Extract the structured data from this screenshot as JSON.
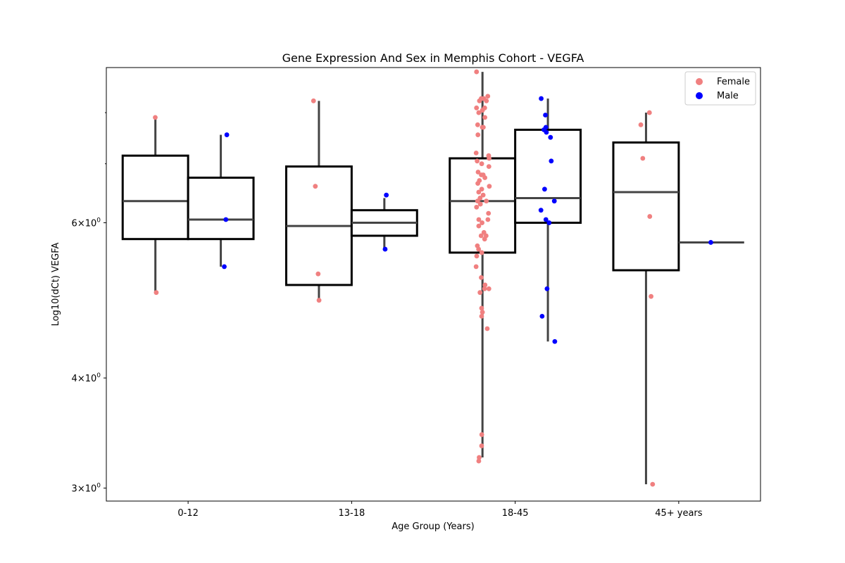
{
  "chart_data": {
    "type": "box",
    "title": "Gene Expression And Sex in Memphis Cohort - VEGFA",
    "xlabel": "Age Group (Years)",
    "ylabel": "Log10(dCt) VEGFA",
    "y_scale": "log",
    "ylim": [
      2.9,
      9.0
    ],
    "y_major_ticks": [
      {
        "value": 3,
        "label_base": "3×10",
        "label_exp": "0"
      },
      {
        "value": 4,
        "label_base": "4×10",
        "label_exp": "0"
      },
      {
        "value": 6,
        "label_base": "6×10",
        "label_exp": "0"
      }
    ],
    "y_minor_ticks": [
      7,
      8
    ],
    "categories": [
      "0-12",
      "13-18",
      "18-45",
      "45+ years"
    ],
    "legend": {
      "position": "upper right",
      "entries": [
        {
          "label": "Female",
          "color": "#f08080"
        },
        {
          "label": "Male",
          "color": "#0000ff"
        }
      ]
    },
    "series": [
      {
        "name": "Female",
        "color": "#f08080",
        "boxes": [
          {
            "category": "0-12",
            "whisker_low": 5.0,
            "q1": 5.75,
            "median": 6.35,
            "q3": 7.15,
            "whisker_high": 7.9
          },
          {
            "category": "13-18",
            "whisker_low": 4.9,
            "q1": 5.1,
            "median": 5.95,
            "q3": 6.95,
            "whisker_high": 8.25
          },
          {
            "category": "18-45",
            "whisker_low": 3.25,
            "q1": 5.55,
            "median": 6.35,
            "q3": 7.1,
            "whisker_high": 8.9
          },
          {
            "category": "45+ years",
            "whisker_low": 3.03,
            "q1": 5.3,
            "median": 6.5,
            "q3": 7.4,
            "whisker_high": 8.0
          }
        ],
        "points": [
          {
            "category": "0-12",
            "values": [
              7.9,
              5.0
            ]
          },
          {
            "category": "13-18",
            "values": [
              8.25,
              6.6,
              5.25,
              4.9
            ]
          },
          {
            "category": "18-45",
            "values": [
              8.9,
              8.35,
              8.3,
              8.3,
              8.25,
              8.25,
              8.1,
              8.1,
              8.05,
              8.0,
              7.9,
              7.75,
              7.7,
              7.7,
              7.55,
              7.2,
              7.15,
              7.1,
              7.05,
              7.0,
              6.95,
              6.85,
              6.8,
              6.8,
              6.75,
              6.7,
              6.65,
              6.6,
              6.55,
              6.5,
              6.45,
              6.4,
              6.35,
              6.35,
              6.3,
              6.3,
              6.25,
              6.15,
              6.05,
              6.05,
              6.0,
              5.95,
              5.85,
              5.8,
              5.8,
              5.75,
              5.65,
              5.6,
              5.55,
              5.5,
              5.35,
              5.2,
              5.1,
              5.05,
              5.05,
              5.0,
              4.8,
              4.75,
              4.7,
              4.55,
              3.45,
              3.35,
              3.25,
              3.22
            ]
          },
          {
            "category": "45+ years",
            "values": [
              8.0,
              7.75,
              7.1,
              6.1,
              4.95,
              3.03
            ]
          }
        ]
      },
      {
        "name": "Male",
        "color": "#0000ff",
        "boxes": [
          {
            "category": "0-12",
            "whisker_low": 5.35,
            "q1": 5.75,
            "median": 6.05,
            "q3": 6.75,
            "whisker_high": 7.55
          },
          {
            "category": "13-18",
            "whisker_low": 5.6,
            "q1": 5.8,
            "median": 6.0,
            "q3": 6.2,
            "whisker_high": 6.4
          },
          {
            "category": "18-45",
            "whisker_low": 4.4,
            "q1": 6.0,
            "median": 6.4,
            "q3": 7.65,
            "whisker_high": 8.3
          },
          {
            "category": "45+ years",
            "whisker_low": 5.7,
            "q1": 5.7,
            "median": 5.7,
            "q3": 5.7,
            "whisker_high": 5.7
          }
        ],
        "points": [
          {
            "category": "0-12",
            "values": [
              7.55,
              6.05,
              5.35
            ]
          },
          {
            "category": "13-18",
            "values": [
              6.45,
              5.6
            ]
          },
          {
            "category": "18-45",
            "values": [
              8.3,
              7.95,
              7.7,
              7.65,
              7.6,
              7.5,
              7.05,
              6.55,
              6.35,
              6.2,
              6.05,
              6.0,
              5.05,
              4.7,
              4.4
            ]
          },
          {
            "category": "45+ years",
            "values": [
              5.7
            ]
          }
        ]
      }
    ]
  }
}
